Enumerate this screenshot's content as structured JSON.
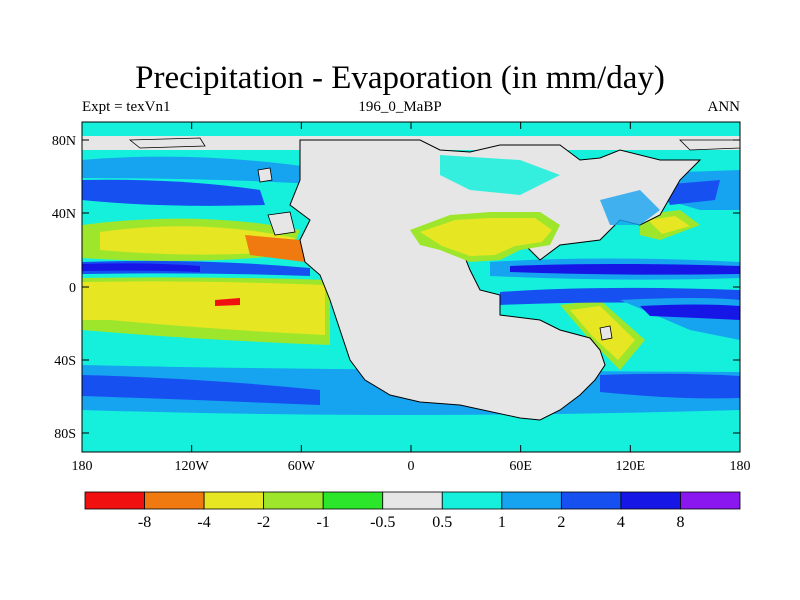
{
  "title": "Precipitation - Evaporation (in mm/day)",
  "subtitle_left": "Expt = texVn1",
  "subtitle_center": "196_0_MaBP",
  "subtitle_right": "ANN",
  "axes": {
    "x_ticks": [
      "180",
      "120W",
      "60W",
      "0",
      "60E",
      "120E",
      "180"
    ],
    "y_ticks": [
      "80N",
      "40N",
      "0",
      "40S",
      "80S"
    ]
  },
  "colorbar": {
    "colors": [
      "#f01010",
      "#f07a10",
      "#e6e622",
      "#9ee62c",
      "#2ce62c",
      "#e6e6e6",
      "#14f0dc",
      "#16a4f0",
      "#1650f0",
      "#1616e6",
      "#8a16f0"
    ],
    "labels": [
      "-8",
      "-4",
      "-2",
      "-1",
      "-0.5",
      "0.5",
      "1",
      "2",
      "4",
      "8"
    ]
  },
  "colors": {
    "land": "#e6e6e6",
    "coast": "#000000"
  }
}
